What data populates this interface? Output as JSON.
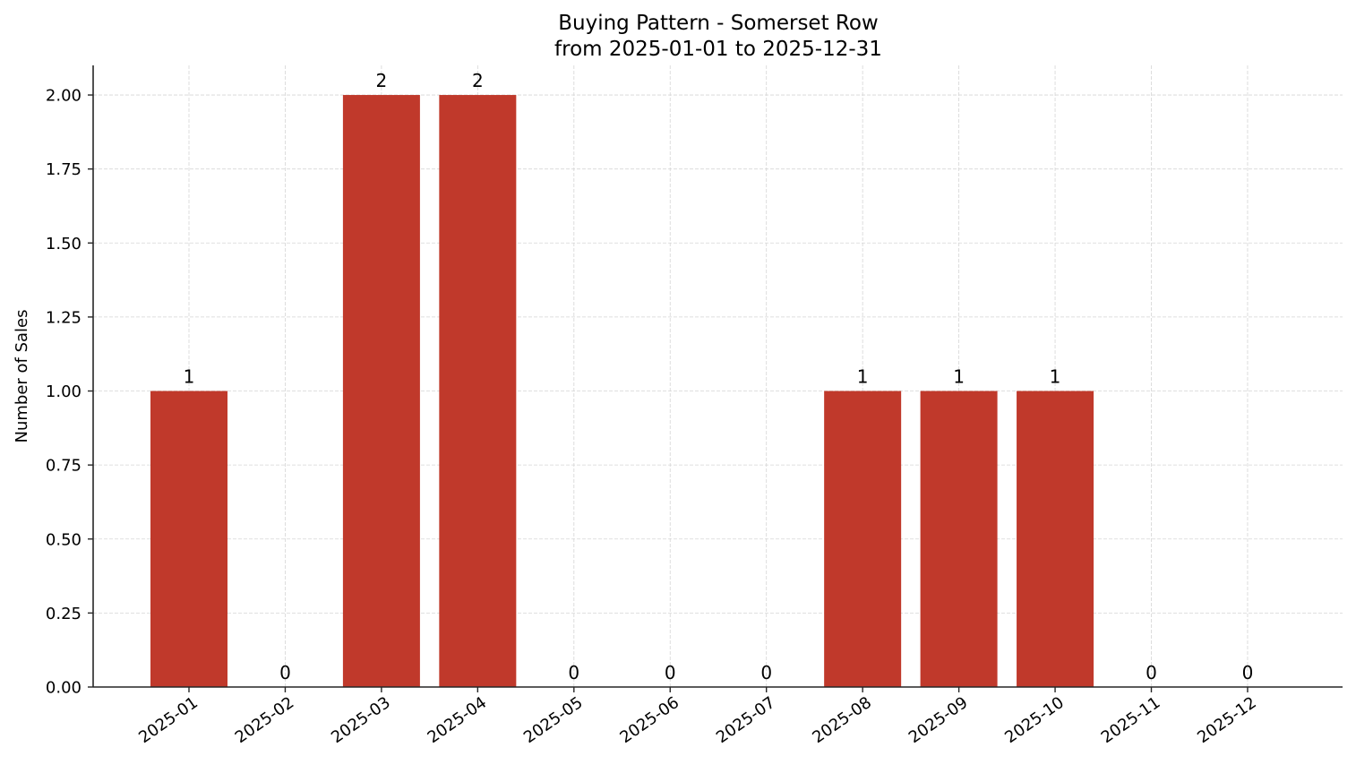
{
  "chart_data": {
    "type": "bar",
    "title": "Buying Pattern - Somerset Row",
    "subtitle": "from 2025-01-01 to 2025-12-31",
    "xlabel": "",
    "ylabel": "Number of Sales",
    "categories": [
      "2025-01",
      "2025-02",
      "2025-03",
      "2025-04",
      "2025-05",
      "2025-06",
      "2025-07",
      "2025-08",
      "2025-09",
      "2025-10",
      "2025-11",
      "2025-12"
    ],
    "values": [
      1,
      0,
      2,
      2,
      0,
      0,
      0,
      1,
      1,
      1,
      0,
      0
    ],
    "ylim": [
      0,
      2.1
    ],
    "yticks": [
      "0.00",
      "0.25",
      "0.50",
      "0.75",
      "1.00",
      "1.25",
      "1.50",
      "1.75",
      "2.00"
    ],
    "grid": true,
    "legend": null,
    "bar_color": "#c0392b",
    "data_labels": true
  }
}
